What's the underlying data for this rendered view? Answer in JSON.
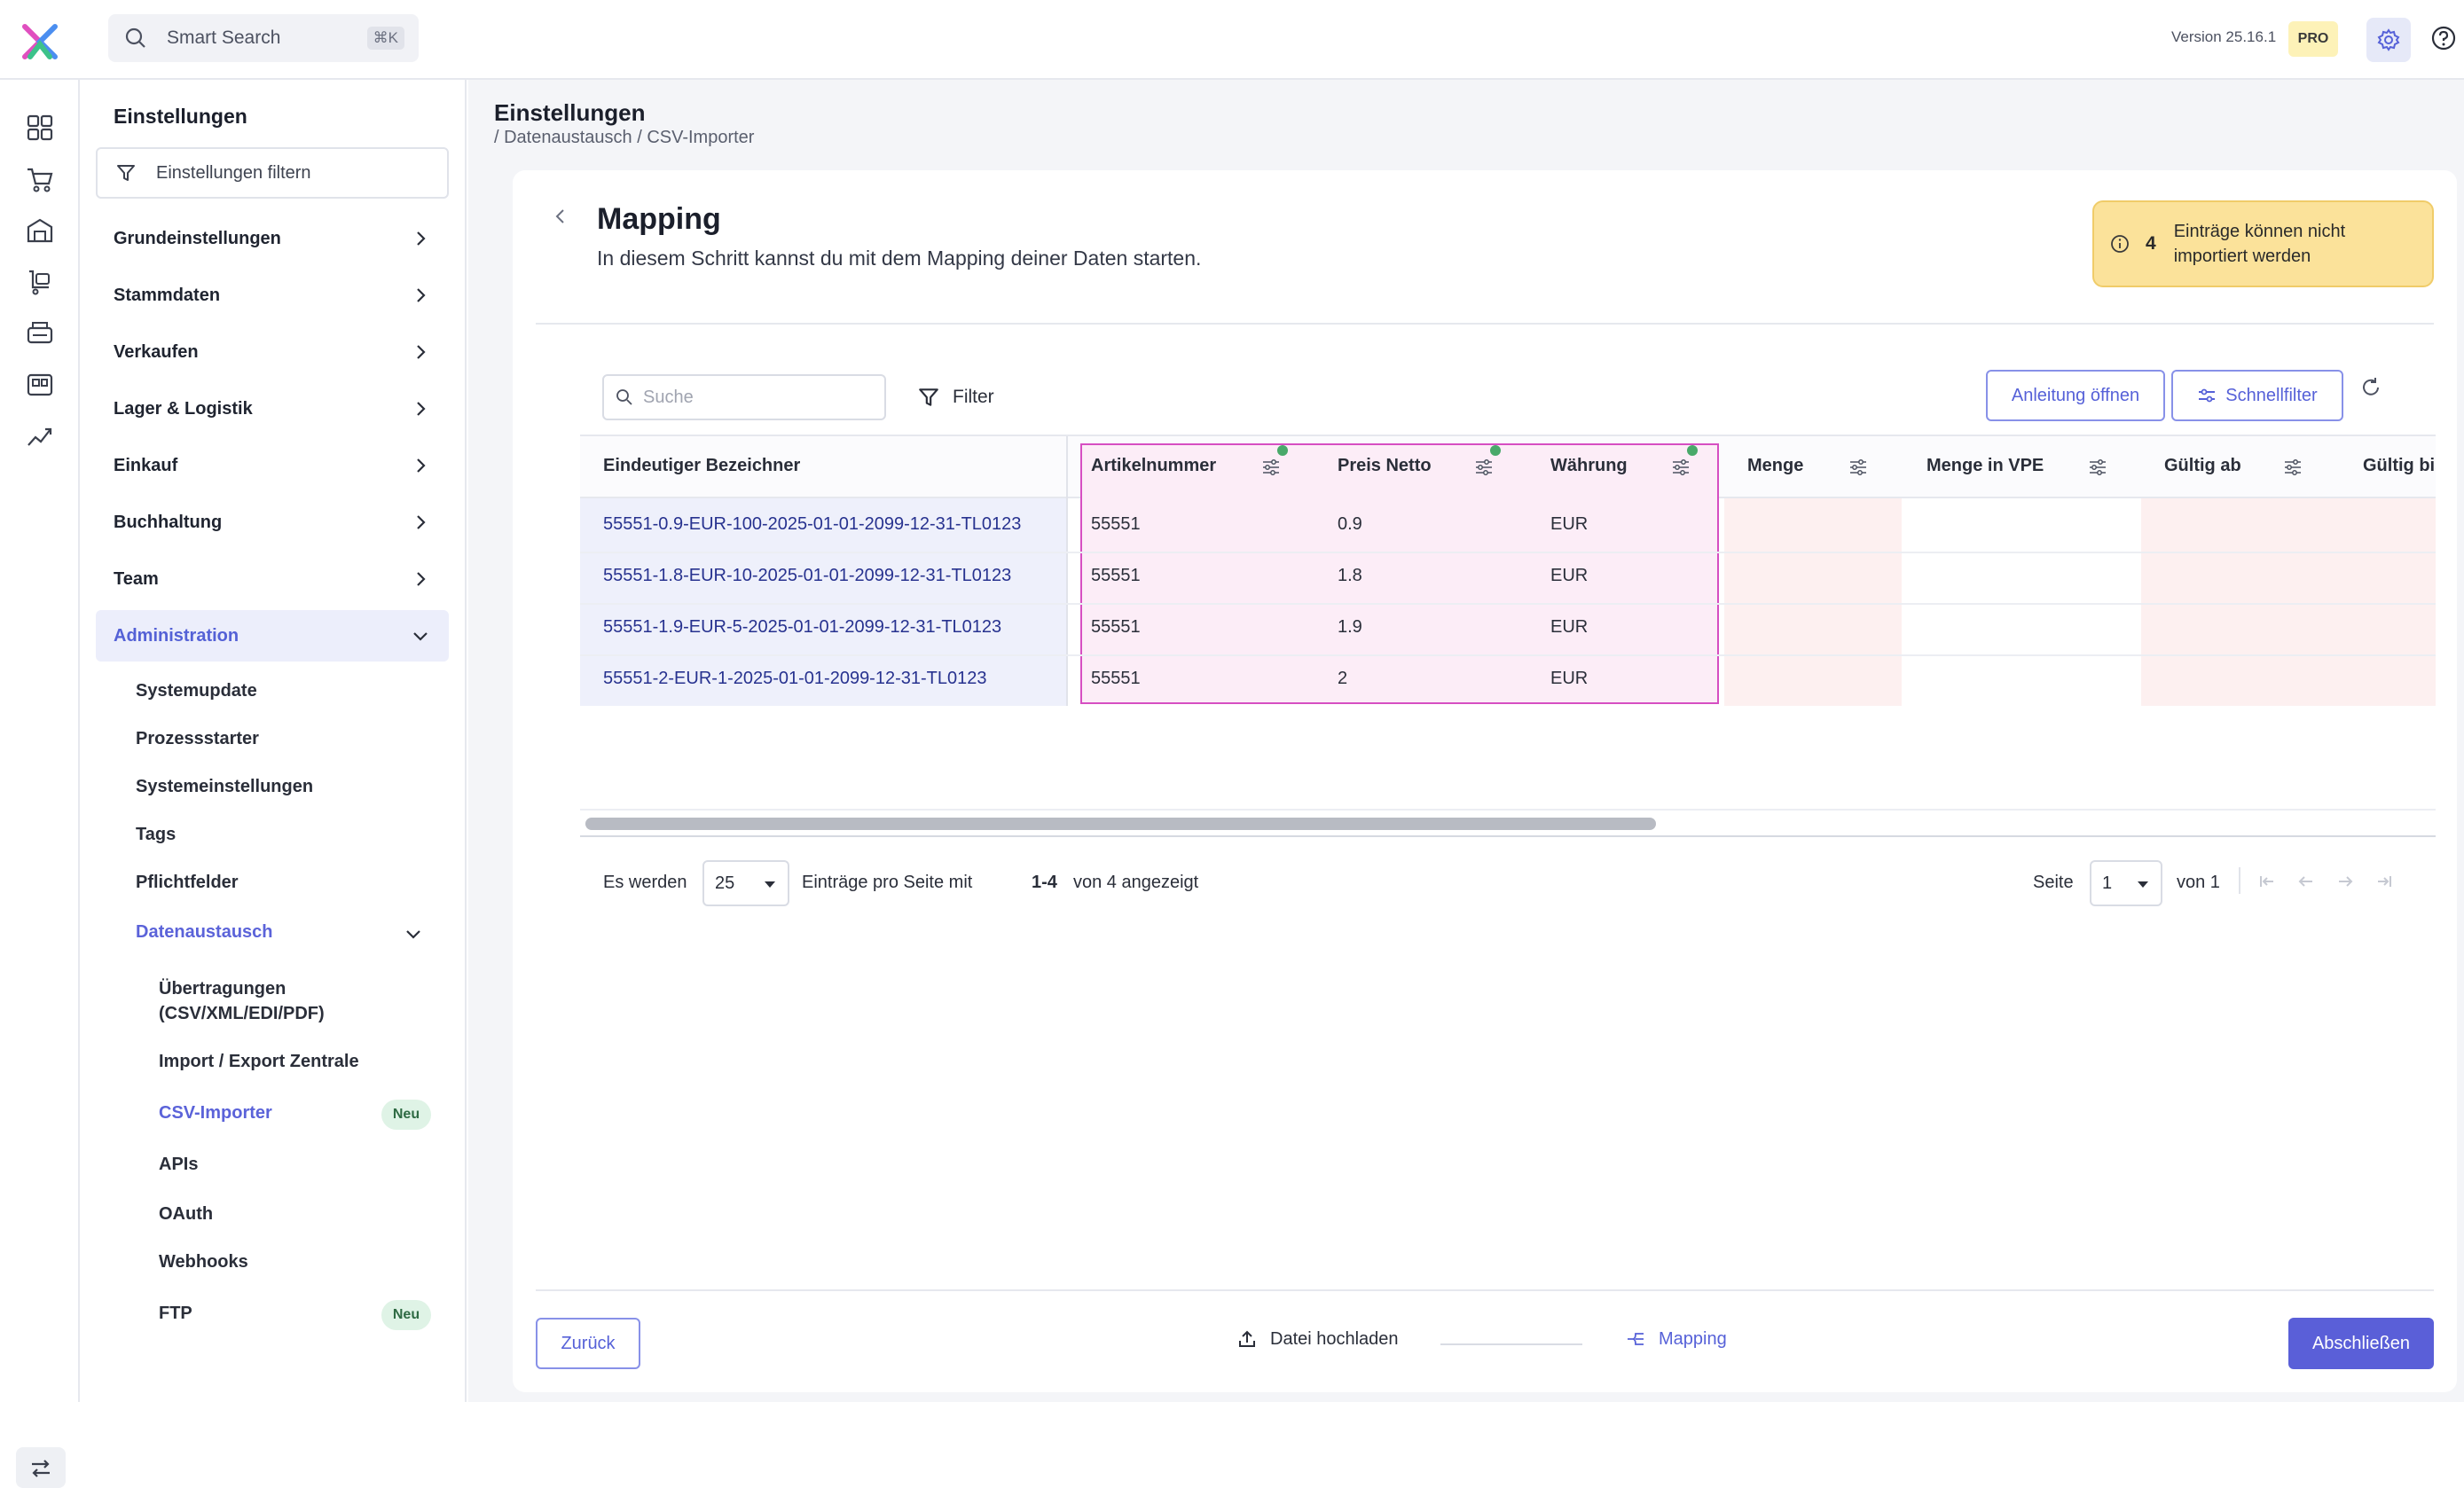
{
  "topbar": {
    "search_label": "Smart Search",
    "search_shortcut": "⌘K",
    "version": "Version 25.16.1",
    "plan_badge": "PRO"
  },
  "sidebar": {
    "title": "Einstellungen",
    "filter_placeholder": "Einstellungen filtern",
    "sections": [
      "Grundeinstellungen",
      "Stammdaten",
      "Verkaufen",
      "Lager & Logistik",
      "Einkauf",
      "Buchhaltung",
      "Team",
      "Administration"
    ],
    "admin_items": [
      "Systemupdate",
      "Prozessstarter",
      "Systemeinstellungen",
      "Tags",
      "Pflichtfelder",
      "Datenaustausch"
    ],
    "datenaustausch_items": [
      "Übertragungen",
      "(CSV/XML/EDI/PDF)",
      "Import / Export Zentrale",
      "CSV-Importer",
      "APIs",
      "OAuth",
      "Webhooks",
      "FTP"
    ],
    "new_badge": "Neu"
  },
  "page": {
    "title": "Einstellungen",
    "breadcrumb": "/ Datenaustausch / CSV-Importer"
  },
  "mapping": {
    "title": "Mapping",
    "subtitle": "In diesem Schritt kannst du mit dem Mapping deiner Daten starten.",
    "warning_count": "4",
    "warning_text": "Einträge können nicht importiert werden",
    "search_placeholder": "Suche",
    "filter_label": "Filter",
    "guide_button": "Anleitung öffnen",
    "quickfilter_button": "Schnellfilter"
  },
  "table": {
    "columns": [
      "Eindeutiger Bezeichner",
      "Artikelnummer",
      "Preis Netto",
      "Währung",
      "Menge",
      "Menge in VPE",
      "Gültig ab",
      "Gültig bis"
    ],
    "rows": [
      [
        "55551-0.9-EUR-100-2025-01-01-2099-12-31-TL0123",
        "55551",
        "0.9",
        "EUR"
      ],
      [
        "55551-1.8-EUR-10-2025-01-01-2099-12-31-TL0123",
        "55551",
        "1.8",
        "EUR"
      ],
      [
        "55551-1.9-EUR-5-2025-01-01-2099-12-31-TL0123",
        "55551",
        "1.9",
        "EUR"
      ],
      [
        "55551-2-EUR-1-2025-01-01-2099-12-31-TL0123",
        "55551",
        "2",
        "EUR"
      ]
    ]
  },
  "pager": {
    "prefix": "Es werden",
    "page_size": "25",
    "middle": "Einträge pro Seite mit",
    "range": "1-4",
    "of_label": "von 4 angezeigt",
    "page_label": "Seite",
    "page": "1",
    "total_label": "von 1"
  },
  "footer": {
    "back_button": "Zurück",
    "step1": "Datei hochladen",
    "step2": "Mapping",
    "finish_button": "Abschließen"
  }
}
